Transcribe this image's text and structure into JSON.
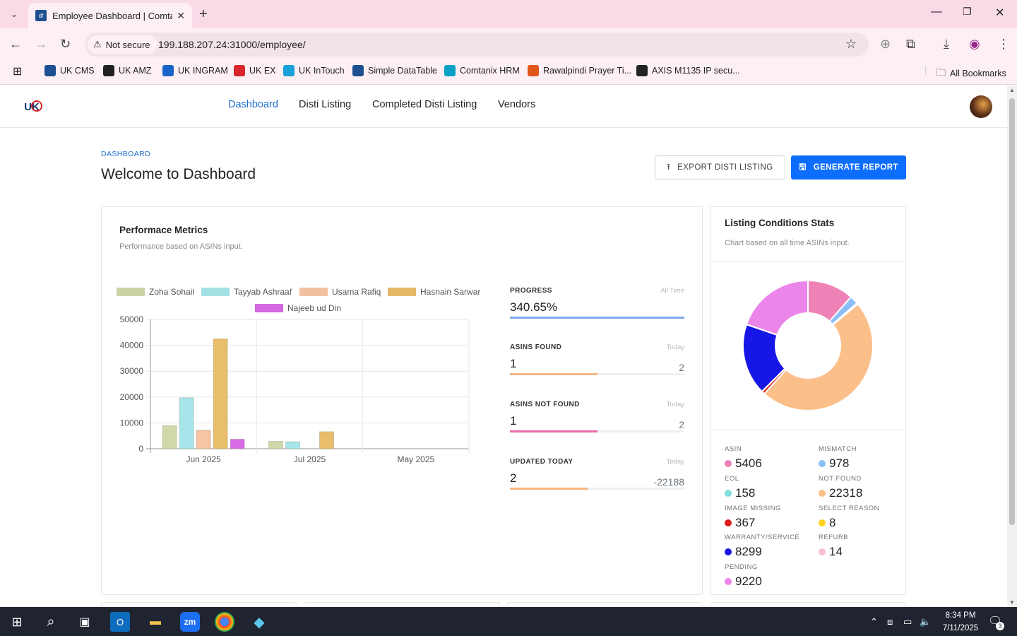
{
  "browser": {
    "tab_title": "Employee Dashboard | Comtanix",
    "security_label": "Not secure",
    "url": "199.188.207.24:31000/employee/",
    "bookmarks": [
      {
        "label": "UK CMS",
        "color": "#1d4f91"
      },
      {
        "label": "UK AMZ",
        "color": "#222222"
      },
      {
        "label": "UK INGRAM",
        "color": "#1b64c7"
      },
      {
        "label": "UK EX",
        "color": "#d9262a"
      },
      {
        "label": "UK InTouch",
        "color": "#1aa0d8"
      },
      {
        "label": "Simple DataTable",
        "color": "#1d4f91"
      },
      {
        "label": "Comtanix HRM",
        "color": "#0aa1c7"
      },
      {
        "label": "Rawalpindi Prayer Ti...",
        "color": "#e0571b"
      },
      {
        "label": "AXIS M1135 IP secu...",
        "color": "#222222"
      }
    ],
    "all_bookmarks": "All Bookmarks"
  },
  "nav": {
    "items": [
      "Dashboard",
      "Disti Listing",
      "Completed Disti Listing",
      "Vendors"
    ],
    "active": "Dashboard"
  },
  "page": {
    "breadcrumb": "DASHBOARD",
    "title": "Welcome to Dashboard",
    "export_label": "EXPORT DISTI LISTING",
    "generate_label": "GENERATE REPORT"
  },
  "performance": {
    "title": "Performace Metrics",
    "subtitle": "Performance based on ASINs input."
  },
  "chart_data": [
    {
      "type": "bar",
      "categories": [
        "Jun 2025",
        "Jul 2025",
        "May 2025"
      ],
      "series": [
        {
          "name": "Zoha Sohail",
          "values": [
            8900,
            2900,
            0
          ],
          "color": "#cfd8a8"
        },
        {
          "name": "Tayyab Ashraaf",
          "values": [
            19700,
            2700,
            0
          ],
          "color": "#a6e6ea"
        },
        {
          "name": "Usama Rafiq",
          "values": [
            7200,
            0,
            0
          ],
          "color": "#f7c5a4"
        },
        {
          "name": "Hasnain Sarwar",
          "values": [
            42500,
            6600,
            0
          ],
          "color": "#e9be6b"
        },
        {
          "name": "Najeeb ud Din",
          "values": [
            3700,
            0,
            0
          ],
          "color": "#d86ae6"
        }
      ],
      "yticks": [
        "50000",
        "40000",
        "30000",
        "20000",
        "10000",
        "0"
      ],
      "ylim": [
        0,
        50000
      ],
      "grid": true,
      "legend": "top"
    },
    {
      "type": "pie",
      "title": "Listing Conditions Stats",
      "subtitle": "Chart based on all time ASINs input.",
      "categories": [
        "ASIN",
        "MISMATCH",
        "EOL",
        "NOT FOUND",
        "IMAGE MISSING",
        "SELECT REASON",
        "WARRANTY/SERVICE",
        "REFURB",
        "PENDING"
      ],
      "values": [
        5406,
        978,
        158,
        22318,
        367,
        8,
        8299,
        14,
        9220
      ],
      "colors": [
        "#ee82b6",
        "#89bff5",
        "#7fe0dc",
        "#fbbf8a",
        "#e11d1d",
        "#ffd21f",
        "#1616e6",
        "#f8bfcf",
        "#ec85ea"
      ],
      "donut": true
    }
  ],
  "metrics": [
    {
      "label": "PROGRESS",
      "period": "All Time",
      "value": "340.65%",
      "total": "",
      "progress": 1.0,
      "color": "#7fa8e6"
    },
    {
      "label": "ASINS FOUND",
      "period": "Today",
      "value": "1",
      "total": "2",
      "progress": 0.5,
      "color": "#f6b783"
    },
    {
      "label": "ASINS NOT FOUND",
      "period": "Today",
      "value": "1",
      "total": "2",
      "progress": 0.5,
      "color": "#ee6aa7"
    },
    {
      "label": "UPDATED TODAY",
      "period": "Today",
      "value": "2",
      "total": "-22188",
      "progress": 0.45,
      "color": "#f6b783"
    }
  ],
  "stats": [
    {
      "label": "ASIN",
      "value": "5406",
      "color": "#ee82b6"
    },
    {
      "label": "MISMATCH",
      "value": "978",
      "color": "#89bff5"
    },
    {
      "label": "EOL",
      "value": "158",
      "color": "#7fe0dc"
    },
    {
      "label": "NOT FOUND",
      "value": "22318",
      "color": "#fbbf8a"
    },
    {
      "label": "IMAGE MISSING",
      "value": "367",
      "color": "#e11d1d"
    },
    {
      "label": "SELECT REASON",
      "value": "8",
      "color": "#ffd21f"
    },
    {
      "label": "WARRANTY/SERVICE",
      "value": "8299",
      "color": "#1616e6"
    },
    {
      "label": "REFURB",
      "value": "14",
      "color": "#f8bfcf"
    },
    {
      "label": "PENDING",
      "value": "9220",
      "color": "#ec85ea"
    }
  ],
  "taskbar": {
    "time": "8:34 PM",
    "date": "7/11/2025",
    "notifications": "3"
  }
}
